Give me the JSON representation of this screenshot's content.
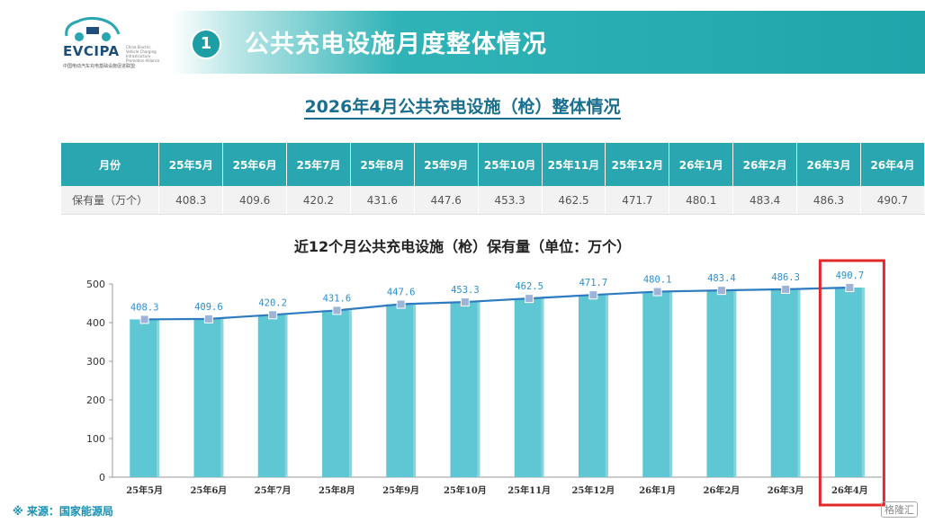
{
  "header": {
    "logo_text": "EVCIPA",
    "logo_sub": "中国电动汽车充电基础设施促进联盟",
    "logo_side": "China Electric Vehicle Charging Infrastructure Promotion Alliance",
    "section_number": "1",
    "section_title": "公共充电设施月度整体情况"
  },
  "subtitle": "2026年4月公共充电设施（枪）整体情况",
  "table": {
    "row_header_label": "月份",
    "row_label": "保有量（万个）",
    "months": [
      "25年5月",
      "25年6月",
      "25年7月",
      "25年8月",
      "25年9月",
      "25年10月",
      "25年11月",
      "25年12月",
      "26年1月",
      "26年2月",
      "26年3月",
      "26年4月"
    ],
    "values": [
      "408.3",
      "409.6",
      "420.2",
      "431.6",
      "447.6",
      "453.3",
      "462.5",
      "471.7",
      "480.1",
      "483.4",
      "486.3",
      "490.7"
    ]
  },
  "chart_data": {
    "type": "bar",
    "title": "近12个月公共充电设施（枪）保有量（单位：万个）",
    "categories": [
      "25年5月",
      "25年6月",
      "25年7月",
      "25年8月",
      "25年9月",
      "25年10月",
      "25年11月",
      "25年12月",
      "26年1月",
      "26年2月",
      "26年3月",
      "26年4月"
    ],
    "series": [
      {
        "values": [
          408.3,
          409.6,
          420.2,
          431.6,
          447.6,
          453.3,
          462.5,
          471.7,
          480.1,
          483.4,
          486.3,
          490.7
        ]
      }
    ],
    "overlay_line": true,
    "ylim": [
      0,
      500
    ],
    "yticks": [
      0,
      100,
      200,
      300,
      400,
      500
    ],
    "highlight_category": "26年4月",
    "bar_color": "#5fc6d4",
    "line_color": "#2e7bbf",
    "marker_color": "#9fb3d9",
    "highlight_color": "#e02a2a"
  },
  "source": "※ 来源：国家能源局",
  "watermark": "格隆汇"
}
